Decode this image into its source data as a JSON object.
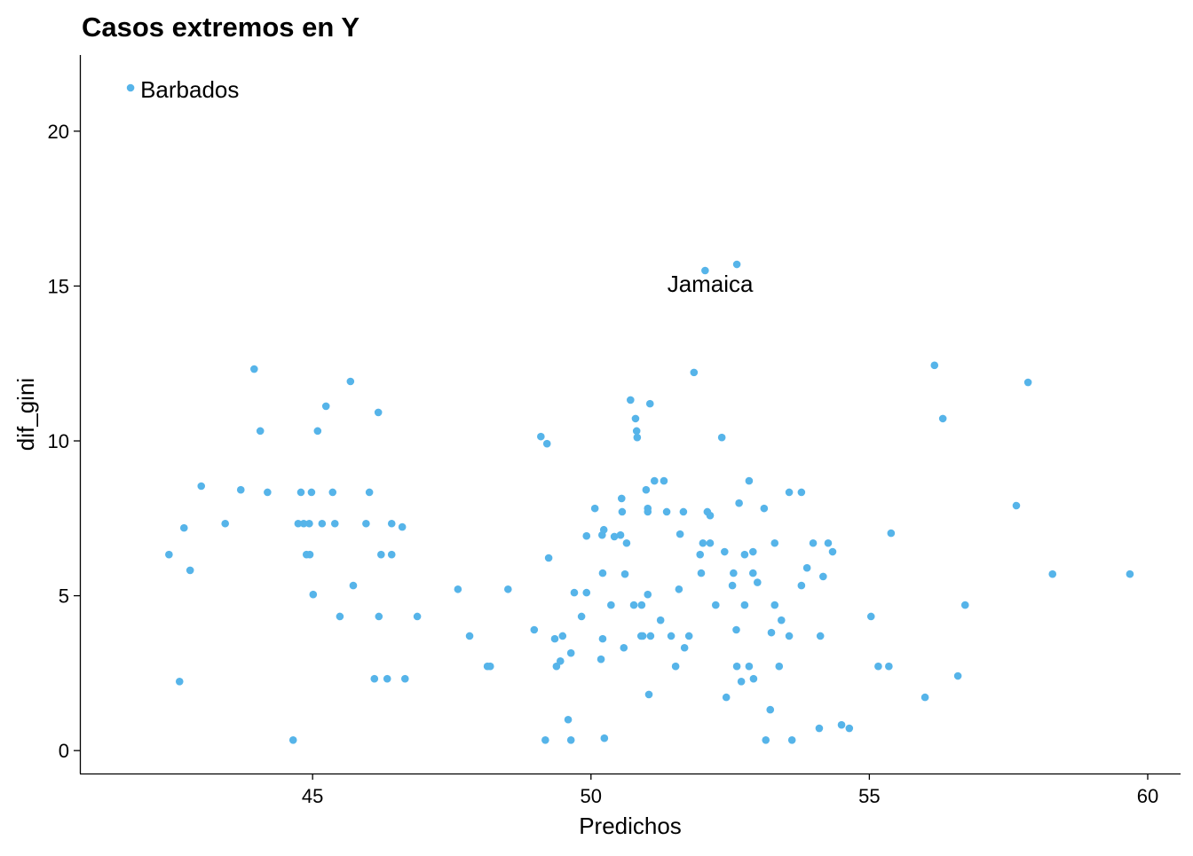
{
  "chart_data": {
    "type": "scatter",
    "title": "Casos extremos en Y",
    "xlabel": "Predichos",
    "ylabel": "dif_gini",
    "xlim": [
      40.82,
      60.59
    ],
    "ylim": [
      -0.74,
      22.46
    ],
    "xticks": [
      45,
      50,
      55,
      60
    ],
    "yticks": [
      0,
      5,
      10,
      15,
      20
    ],
    "xtick_labels": [
      "45",
      "50",
      "55",
      "60"
    ],
    "ytick_labels": [
      "0",
      "5",
      "10",
      "15",
      "20"
    ],
    "grid": false,
    "point_color": "#56B4E9",
    "labels": [
      {
        "text": "Barbados",
        "point_index": 0,
        "placement": "right"
      },
      {
        "text": "Jamaica",
        "point_index": 2,
        "placement": "below"
      }
    ],
    "x": [
      41.73,
      52.05,
      52.62,
      42.42,
      42.69,
      42.8,
      42.61,
      43.0,
      43.43,
      43.71,
      43.95,
      44.06,
      44.19,
      44.65,
      44.79,
      44.74,
      44.84,
      44.94,
      44.89,
      44.95,
      44.98,
      45.01,
      45.09,
      45.17,
      45.24,
      45.36,
      45.4,
      45.49,
      45.68,
      45.73,
      45.96,
      46.02,
      46.11,
      46.18,
      46.19,
      46.23,
      46.34,
      46.42,
      46.42,
      46.61,
      46.66,
      46.88,
      47.61,
      47.82,
      48.14,
      48.19,
      48.51,
      48.98,
      49.1,
      49.21,
      49.24,
      49.18,
      49.35,
      49.38,
      49.45,
      49.49,
      49.59,
      49.64,
      49.64,
      49.7,
      49.83,
      49.92,
      49.92,
      50.07,
      50.18,
      50.21,
      50.2,
      50.23,
      50.21,
      50.24,
      50.36,
      50.42,
      50.53,
      50.55,
      50.56,
      50.59,
      50.61,
      50.64,
      50.71,
      50.77,
      50.8,
      50.82,
      50.83,
      50.9,
      50.91,
      50.93,
      50.99,
      51.02,
      51.02,
      51.02,
      51.04,
      51.06,
      51.07,
      51.14,
      51.25,
      51.31,
      51.36,
      51.44,
      51.52,
      51.58,
      51.6,
      51.66,
      51.68,
      51.76,
      51.85,
      51.96,
      51.98,
      52.01,
      52.09,
      52.14,
      52.14,
      52.24,
      52.35,
      52.4,
      52.43,
      52.54,
      52.56,
      52.61,
      52.62,
      52.66,
      52.7,
      52.76,
      52.76,
      52.84,
      52.84,
      52.91,
      52.91,
      52.92,
      52.99,
      53.11,
      53.14,
      53.22,
      53.24,
      53.3,
      53.3,
      53.38,
      53.42,
      53.56,
      53.56,
      53.61,
      53.78,
      53.78,
      53.88,
      53.99,
      54.1,
      54.12,
      54.17,
      54.26,
      54.34,
      54.5,
      54.64,
      55.03,
      55.16,
      55.35,
      55.39,
      56.0,
      56.17,
      56.32,
      56.59,
      56.72,
      57.64,
      57.85,
      58.29,
      59.68
    ],
    "y": [
      21.4,
      15.5,
      15.7,
      6.33,
      7.19,
      5.82,
      2.23,
      8.54,
      7.33,
      8.42,
      12.32,
      10.32,
      8.34,
      0.34,
      8.34,
      7.33,
      7.33,
      7.33,
      6.33,
      6.33,
      8.34,
      5.04,
      10.32,
      7.33,
      11.12,
      8.34,
      7.33,
      4.33,
      11.92,
      5.33,
      7.33,
      8.34,
      2.32,
      10.92,
      4.33,
      6.33,
      2.32,
      6.33,
      7.33,
      7.22,
      2.32,
      4.33,
      5.21,
      3.7,
      2.72,
      2.72,
      5.21,
      3.9,
      10.14,
      9.91,
      6.22,
      0.34,
      3.61,
      2.72,
      2.89,
      3.7,
      1.0,
      0.34,
      3.15,
      5.1,
      4.33,
      6.93,
      5.1,
      7.82,
      2.95,
      3.61,
      6.96,
      7.13,
      5.73,
      0.4,
      4.7,
      6.91,
      6.96,
      8.14,
      7.71,
      3.32,
      5.7,
      6.7,
      11.32,
      4.7,
      10.72,
      10.32,
      10.11,
      3.7,
      4.7,
      3.7,
      8.42,
      7.82,
      7.71,
      5.04,
      1.81,
      11.2,
      3.7,
      8.71,
      4.21,
      8.71,
      7.71,
      3.7,
      2.72,
      5.21,
      6.99,
      7.71,
      3.32,
      3.7,
      12.21,
      6.33,
      5.73,
      6.7,
      7.71,
      6.7,
      7.59,
      4.7,
      10.11,
      6.42,
      1.72,
      5.33,
      5.73,
      3.9,
      2.72,
      7.99,
      2.23,
      6.33,
      4.7,
      8.71,
      2.72,
      5.73,
      6.42,
      2.32,
      5.43,
      7.82,
      0.34,
      1.32,
      3.81,
      6.7,
      4.7,
      2.72,
      4.21,
      8.34,
      3.7,
      0.34,
      8.34,
      5.33,
      5.9,
      6.7,
      0.72,
      3.7,
      5.62,
      6.7,
      6.42,
      0.83,
      0.72,
      4.33,
      2.72,
      2.72,
      7.02,
      1.72,
      12.44,
      10.72,
      2.41,
      4.7,
      7.91,
      11.89,
      5.7,
      5.7
    ]
  }
}
